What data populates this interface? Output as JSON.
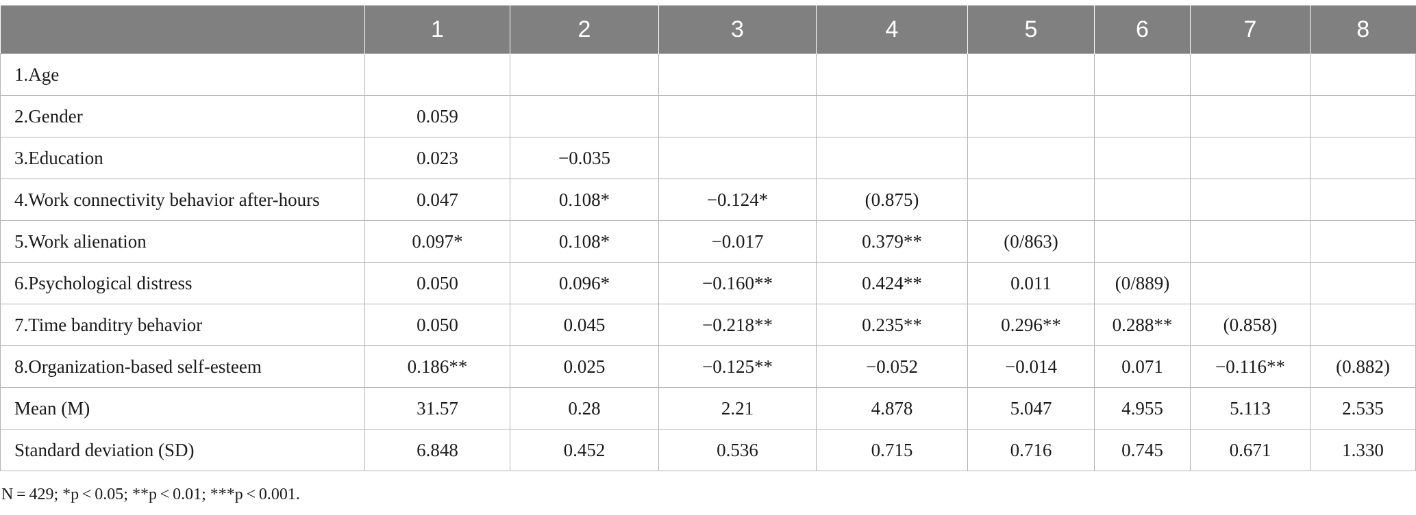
{
  "table": {
    "header": [
      "",
      "1",
      "2",
      "3",
      "4",
      "5",
      "6",
      "7",
      "8"
    ],
    "rows": [
      [
        "1.Age",
        "",
        "",
        "",
        "",
        "",
        "",
        "",
        ""
      ],
      [
        "2.Gender",
        "0.059",
        "",
        "",
        "",
        "",
        "",
        "",
        ""
      ],
      [
        "3.Education",
        "0.023",
        "−0.035",
        "",
        "",
        "",
        "",
        "",
        ""
      ],
      [
        "4.Work connectivity behavior after-hours",
        "0.047",
        "0.108*",
        "−0.124*",
        "(0.875)",
        "",
        "",
        "",
        ""
      ],
      [
        "5.Work alienation",
        "0.097*",
        "0.108*",
        "−0.017",
        "0.379**",
        "(0/863)",
        "",
        "",
        ""
      ],
      [
        "6.Psychological distress",
        "0.050",
        "0.096*",
        "−0.160**",
        "0.424**",
        "0.011",
        "(0/889)",
        "",
        ""
      ],
      [
        "7.Time banditry behavior",
        "0.050",
        "0.045",
        "−0.218**",
        "0.235**",
        "0.296**",
        "0.288**",
        "(0.858)",
        ""
      ],
      [
        "8.Organization-based self-esteem",
        "0.186**",
        "0.025",
        "−0.125**",
        "−0.052",
        "−0.014",
        "0.071",
        "−0.116**",
        "(0.882)"
      ],
      [
        "Mean (M)",
        "31.57",
        "0.28",
        "2.21",
        "4.878",
        "5.047",
        "4.955",
        "5.113",
        "2.535"
      ],
      [
        "Standard deviation (SD)",
        "6.848",
        "0.452",
        "0.536",
        "0.715",
        "0.716",
        "0.745",
        "0.671",
        "1.330"
      ]
    ]
  },
  "note": "N = 429; *p < 0.05; **p < 0.01; ***p < 0.001."
}
